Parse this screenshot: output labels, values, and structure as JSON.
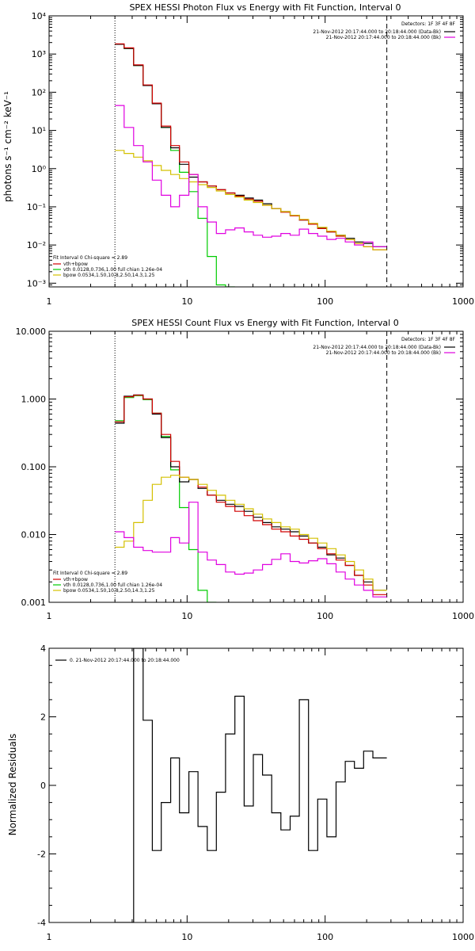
{
  "colors": {
    "data": "#000000",
    "total": "#d00000",
    "vth": "#00cc00",
    "bpow": "#d4c000",
    "bk": "#e000e0"
  },
  "chart_data": [
    {
      "type": "line",
      "title": "SPEX HESSI Photon Flux vs Energy with Fit Function, Interval 0",
      "ylabel": "photons s⁻¹ cm⁻² keV⁻¹",
      "xlabel": "",
      "xscale": "log",
      "yscale": "log",
      "xlim": [
        1,
        1000
      ],
      "ylim": [
        0.0008,
        10000
      ],
      "xtick_labels": [
        "1",
        "10",
        "100",
        "1000"
      ],
      "xtick_values": [
        1,
        10,
        100,
        1000
      ],
      "ytick_labels": [
        "10⁻³",
        "10⁻²",
        "10⁻¹",
        "10⁰",
        "10¹",
        "10²",
        "10³",
        "10⁴"
      ],
      "ytick_values": [
        0.001,
        0.01,
        0.1,
        1,
        10,
        100,
        1000,
        10000
      ],
      "vlines": [
        {
          "x": 3,
          "style": "dotted"
        },
        {
          "x": 280,
          "style": "dashed"
        }
      ],
      "legend_top_right": {
        "header": "Detectors: 1F 3F 4F 8F",
        "entries": [
          {
            "text": "21-Nov-2012 20:17:44.000 to 20:18:44.000 (Data-Bk)",
            "color": "#000000"
          },
          {
            "text": "21-Nov-2012 20:17:44.000 to 20:18:44.000 (Bk)",
            "color": "#e000e0"
          }
        ]
      },
      "legend_bottom_left": {
        "header": "Fit Interval 0   Chi-square = 2.89",
        "entries": [
          {
            "text": "vth+bpow",
            "color": "#d00000"
          },
          {
            "text": "vth 0.0128,0.736,1.00  full chian 1.26e-04",
            "color": "#00cc00"
          },
          {
            "text": "bpow 0.0534,1.50,10.8,2.50,14.3,1.25",
            "color": "#d4c000"
          }
        ]
      },
      "edges": [
        3.0,
        3.5,
        4.1,
        4.8,
        5.6,
        6.5,
        7.6,
        8.8,
        10.3,
        12.0,
        14.0,
        16.3,
        19.0,
        22.2,
        25.9,
        30.2,
        35.2,
        41.0,
        47.8,
        55.8,
        65.0,
        75.8,
        88.4,
        103,
        120,
        140,
        163,
        190,
        222,
        280
      ],
      "series": [
        {
          "key": "vth",
          "color": "#00cc00",
          "values": [
            1800,
            1400,
            500,
            150,
            50,
            12,
            3,
            0.8,
            0.25,
            0.05,
            0.005,
            0.0009,
            0.0008
          ]
        },
        {
          "key": "data",
          "color": "#000000",
          "values": [
            1800,
            1400,
            500,
            150,
            50,
            12,
            3.5,
            1.3,
            0.6,
            0.45,
            0.35,
            0.28,
            0.23,
            0.2,
            0.17,
            0.15,
            0.12,
            0.09,
            0.075,
            0.06,
            0.045,
            0.035,
            0.028,
            0.022,
            0.018,
            0.015,
            0.012,
            0.011,
            0.009
          ]
        },
        {
          "key": "total",
          "color": "#d00000",
          "values": [
            1850,
            1450,
            520,
            155,
            52,
            13,
            4,
            1.5,
            0.7,
            0.45,
            0.35,
            0.28,
            0.23,
            0.19,
            0.16,
            0.14,
            0.11,
            0.09,
            0.072,
            0.058,
            0.045,
            0.035,
            0.027,
            0.022,
            0.017,
            0.014,
            0.011,
            0.009,
            0.0075
          ]
        },
        {
          "key": "bpow",
          "color": "#d4c000",
          "values": [
            3,
            2.5,
            2,
            1.6,
            1.2,
            0.9,
            0.7,
            0.55,
            0.45,
            0.38,
            0.32,
            0.26,
            0.21,
            0.18,
            0.15,
            0.13,
            0.11,
            0.09,
            0.075,
            0.06,
            0.047,
            0.037,
            0.029,
            0.023,
            0.018,
            0.014,
            0.011,
            0.009,
            0.0075
          ]
        },
        {
          "key": "bk",
          "color": "#e000e0",
          "values": [
            45,
            12,
            4,
            1.5,
            0.5,
            0.2,
            0.1,
            0.2,
            0.7,
            0.1,
            0.04,
            0.02,
            0.025,
            0.028,
            0.022,
            0.018,
            0.016,
            0.017,
            0.02,
            0.018,
            0.026,
            0.02,
            0.017,
            0.014,
            0.015,
            0.012,
            0.01,
            0.012,
            0.009
          ]
        }
      ]
    },
    {
      "type": "line",
      "title": "SPEX HESSI Count Flux vs Energy with Fit Function, Interval 0",
      "ylabel": "",
      "xlabel": "",
      "xscale": "log",
      "yscale": "log",
      "xlim": [
        1,
        1000
      ],
      "ylim": [
        0.001,
        10
      ],
      "xtick_labels": [
        "1",
        "10",
        "100",
        "1000"
      ],
      "xtick_values": [
        1,
        10,
        100,
        1000
      ],
      "ytick_labels": [
        "0.001",
        "0.010",
        "0.100",
        "1.000",
        "10.000"
      ],
      "ytick_values": [
        0.001,
        0.01,
        0.1,
        1,
        10
      ],
      "vlines": [
        {
          "x": 3,
          "style": "dotted"
        },
        {
          "x": 280,
          "style": "dashed"
        }
      ],
      "legend_top_right": {
        "header": "Detectors: 1F 3F 4F 8F",
        "entries": [
          {
            "text": "21-Nov-2012 20:17:44.000 to 20:18:44.000 (Data-Bk)",
            "color": "#000000"
          },
          {
            "text": "21-Nov-2012 20:17:44.000 to 20:18:44.000 (Bk)",
            "color": "#e000e0"
          }
        ]
      },
      "legend_bottom_left": {
        "header": "Fit Interval 0   Chi-square = 2.89",
        "entries": [
          {
            "text": "vth+bpow",
            "color": "#d00000"
          },
          {
            "text": "vth 0.0128,0.736,1.00  full chian 1.26e-04",
            "color": "#00cc00"
          },
          {
            "text": "bpow 0.0534,1.50,10.8,2.50,14.3,1.25",
            "color": "#d4c000"
          }
        ]
      },
      "edges": [
        3.0,
        3.5,
        4.1,
        4.8,
        5.6,
        6.5,
        7.6,
        8.8,
        10.3,
        12.0,
        14.0,
        16.3,
        19.0,
        22.2,
        25.9,
        30.2,
        35.2,
        41.0,
        47.8,
        55.8,
        65.0,
        75.8,
        88.4,
        103,
        120,
        140,
        163,
        190,
        222,
        280
      ],
      "series": [
        {
          "key": "vth",
          "color": "#00cc00",
          "values": [
            0.48,
            1.05,
            1.12,
            0.98,
            0.62,
            0.28,
            0.09,
            0.025,
            0.006,
            0.0015,
            0.0009
          ]
        },
        {
          "key": "data",
          "color": "#000000",
          "values": [
            0.44,
            1.1,
            1.15,
            1.0,
            0.6,
            0.27,
            0.1,
            0.06,
            0.065,
            0.048,
            0.038,
            0.032,
            0.028,
            0.026,
            0.022,
            0.018,
            0.015,
            0.013,
            0.012,
            0.011,
            0.0095,
            0.0075,
            0.0065,
            0.005,
            0.0045,
            0.0035,
            0.0025,
            0.002,
            0.0015
          ]
        },
        {
          "key": "total",
          "color": "#d00000",
          "values": [
            0.46,
            1.08,
            1.14,
            1.0,
            0.62,
            0.3,
            0.12,
            0.07,
            0.065,
            0.05,
            0.038,
            0.03,
            0.026,
            0.022,
            0.019,
            0.016,
            0.014,
            0.012,
            0.011,
            0.0095,
            0.0085,
            0.0075,
            0.0062,
            0.0052,
            0.0042,
            0.0035,
            0.0025,
            0.0018,
            0.0013
          ]
        },
        {
          "key": "bpow",
          "color": "#d4c000",
          "values": [
            0.0065,
            0.008,
            0.015,
            0.032,
            0.055,
            0.07,
            0.075,
            0.07,
            0.065,
            0.055,
            0.045,
            0.038,
            0.032,
            0.028,
            0.024,
            0.02,
            0.017,
            0.015,
            0.013,
            0.012,
            0.01,
            0.0088,
            0.0075,
            0.0062,
            0.005,
            0.004,
            0.003,
            0.0022,
            0.0015
          ]
        },
        {
          "key": "bk",
          "color": "#e000e0",
          "values": [
            0.011,
            0.009,
            0.0065,
            0.0058,
            0.0055,
            0.0055,
            0.009,
            0.0075,
            0.03,
            0.0055,
            0.0042,
            0.0036,
            0.0028,
            0.0026,
            0.0027,
            0.003,
            0.0036,
            0.0043,
            0.0052,
            0.004,
            0.0038,
            0.0041,
            0.0044,
            0.0037,
            0.0028,
            0.0022,
            0.0018,
            0.0015,
            0.0012
          ]
        }
      ]
    },
    {
      "type": "line",
      "title": "",
      "ylabel": "Normalized Residuals",
      "xlabel": "",
      "xscale": "log",
      "yscale": "linear",
      "xlim": [
        1,
        1000
      ],
      "ylim": [
        -4,
        4
      ],
      "xtick_labels": [
        "1",
        "10",
        "100",
        "1000"
      ],
      "xtick_values": [
        1,
        10,
        100,
        1000
      ],
      "ytick_labels": [
        "-4",
        "-2",
        "0",
        "2",
        "4"
      ],
      "ytick_values": [
        -4,
        -2,
        0,
        2,
        4
      ],
      "legend": {
        "text": "0. 21-Nov-2012 20:17:44.000 to 20:18:44.000",
        "color": "#000000"
      },
      "edges": [
        3.0,
        3.5,
        4.1,
        4.8,
        5.6,
        6.5,
        7.6,
        8.8,
        10.3,
        12.0,
        14.0,
        16.3,
        19.0,
        22.2,
        25.9,
        30.2,
        35.2,
        41.0,
        47.8,
        55.8,
        65.0,
        75.8,
        88.4,
        103,
        120,
        140,
        163,
        190,
        222,
        280
      ],
      "series": [
        {
          "key": "residuals",
          "color": "#000000",
          "values": [
            -4.0,
            -4.0,
            4.0,
            1.9,
            -1.9,
            -0.5,
            0.8,
            -0.8,
            0.4,
            -1.2,
            -1.9,
            -0.2,
            1.5,
            2.6,
            -0.6,
            0.9,
            0.3,
            -0.8,
            -1.3,
            -0.9,
            2.5,
            -1.9,
            -0.4,
            -1.5,
            0.1,
            0.7,
            0.5,
            1.0,
            0.8
          ]
        }
      ]
    }
  ]
}
